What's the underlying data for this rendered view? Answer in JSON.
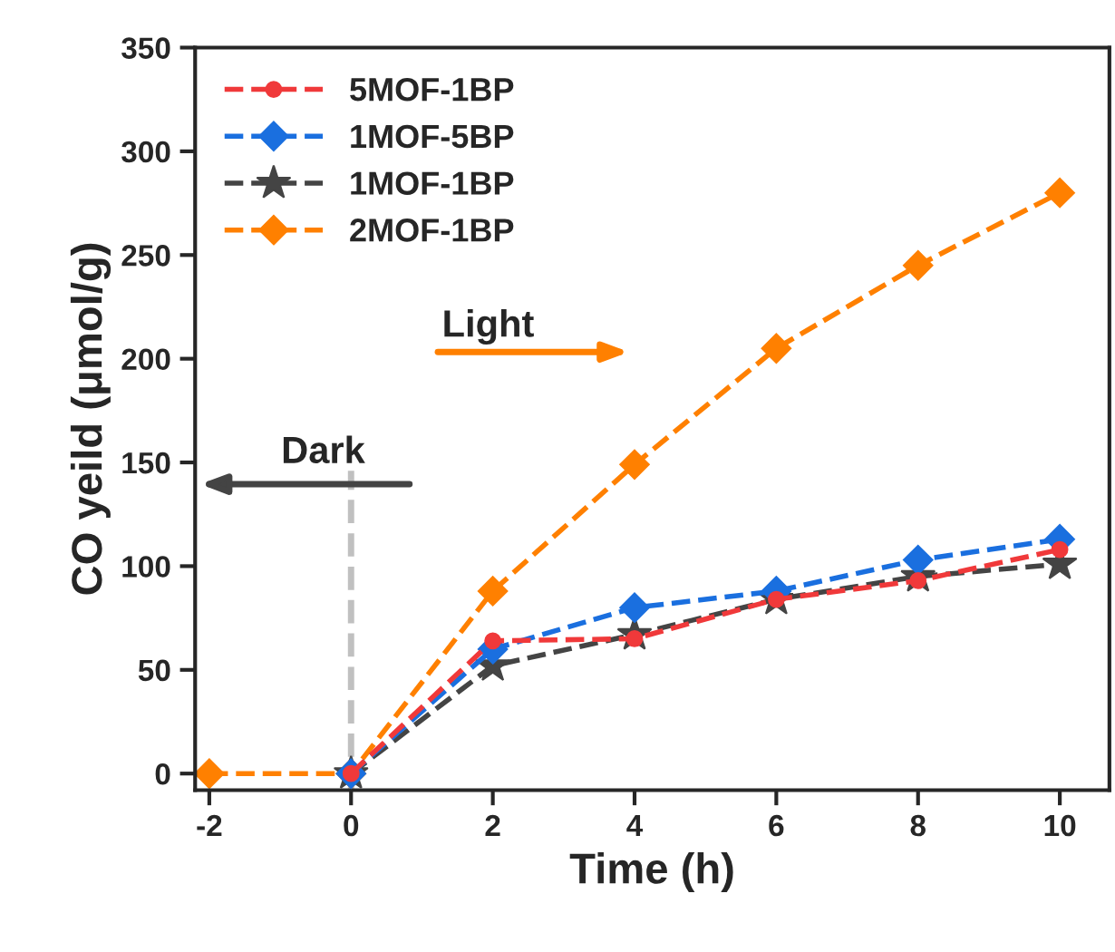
{
  "chart_data": {
    "type": "line",
    "xlabel": "Time (h)",
    "ylabel": "CO yeild (μmol/g)",
    "x": [
      -2,
      0,
      2,
      4,
      6,
      8,
      10
    ],
    "xlim": [
      -2.2,
      10.7
    ],
    "xticks": [
      -2,
      0,
      2,
      4,
      6,
      8,
      10
    ],
    "ylim": [
      -8,
      350
    ],
    "yticks": [
      0,
      50,
      100,
      150,
      200,
      250,
      300,
      350
    ],
    "series": [
      {
        "name": "5MOF-1BP",
        "color": "#f0393a",
        "marker": "circle",
        "values": [
          null,
          0,
          64,
          65,
          84,
          93,
          108
        ]
      },
      {
        "name": "1MOF-5BP",
        "color": "#1a6fdf",
        "marker": "diamond",
        "values": [
          null,
          0,
          60,
          80,
          88,
          103,
          113
        ]
      },
      {
        "name": "1MOF-1BP",
        "color": "#444444",
        "marker": "star",
        "values": [
          null,
          0,
          52,
          67,
          84,
          95,
          101
        ]
      },
      {
        "name": "2MOF-1BP",
        "color": "#ff8000",
        "marker": "diamond",
        "values": [
          0,
          0,
          88,
          149,
          205,
          245,
          280
        ]
      }
    ],
    "line_style": "dashed",
    "ref_lines": [
      {
        "axis": "x",
        "value": 0,
        "color": "#c0c0c0",
        "line_style": "dashed"
      }
    ],
    "annotations": [
      "Light",
      "Dark"
    ],
    "legend": "top left",
    "grid": false
  }
}
